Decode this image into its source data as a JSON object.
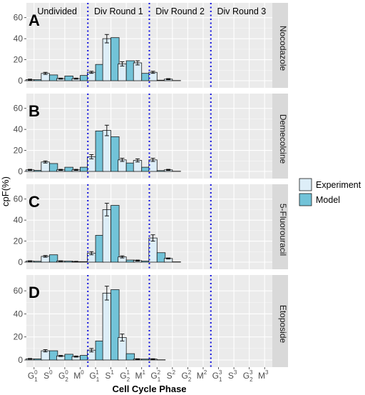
{
  "chart_data": {
    "type": "bar",
    "ylabel": "cpF(%)",
    "xlabel": "Cell Cycle Phase",
    "ylim": [
      0,
      70
    ],
    "yticks": [
      0,
      20,
      40,
      60
    ],
    "grid": true,
    "legend_position": "right",
    "categories": [
      {
        "base": "G",
        "sub": "1",
        "sup": "0"
      },
      {
        "base": "S",
        "sub": "",
        "sup": "0"
      },
      {
        "base": "G",
        "sub": "2",
        "sup": "0"
      },
      {
        "base": "M",
        "sub": "",
        "sup": "0"
      },
      {
        "base": "G",
        "sub": "1",
        "sup": "1"
      },
      {
        "base": "S",
        "sub": "",
        "sup": "1"
      },
      {
        "base": "G",
        "sub": "2",
        "sup": "1"
      },
      {
        "base": "M",
        "sub": "",
        "sup": "1"
      },
      {
        "base": "G",
        "sub": "1",
        "sup": "2"
      },
      {
        "base": "S",
        "sub": "",
        "sup": "2"
      },
      {
        "base": "G",
        "sub": "2",
        "sup": "2"
      },
      {
        "base": "M",
        "sub": "",
        "sup": "2"
      },
      {
        "base": "G",
        "sub": "1",
        "sup": "3"
      },
      {
        "base": "S",
        "sub": "",
        "sup": "3"
      },
      {
        "base": "G",
        "sub": "2",
        "sup": "3"
      },
      {
        "base": "M",
        "sub": "",
        "sup": "3"
      }
    ],
    "round_labels": [
      "Undivided",
      "Div Round 1",
      "Div Round 2",
      "Div Round 3"
    ],
    "legend": [
      {
        "name": "Experiment",
        "color": "#ddeef8"
      },
      {
        "name": "Model",
        "color": "#72c3d8"
      }
    ],
    "panels": [
      {
        "letter": "A",
        "strip": "Nocodazole",
        "series": [
          {
            "name": "Experiment",
            "values": [
              1,
              7,
              2,
              2,
              8,
              40,
              16,
              17,
              8,
              1.5,
              0,
              0,
              0,
              0,
              0,
              0
            ],
            "errors": [
              0.5,
              1,
              0.5,
              0.5,
              1,
              4,
              2,
              2,
              1,
              0.5,
              0,
              0,
              0,
              0,
              0,
              0
            ]
          },
          {
            "name": "Model",
            "values": [
              1,
              5.5,
              4.5,
              5,
              15.5,
              41,
              19,
              7,
              0.5,
              0.2,
              0,
              0,
              0,
              0,
              0,
              0
            ]
          }
        ]
      },
      {
        "letter": "B",
        "strip": "Demecolcine",
        "series": [
          {
            "name": "Experiment",
            "values": [
              1.5,
              9,
              1.5,
              1.5,
              14,
              39,
              11,
              10.5,
              11,
              1.5,
              0,
              0,
              0,
              0,
              0,
              0
            ],
            "errors": [
              0.5,
              1,
              0.5,
              0.5,
              2,
              5,
              1.5,
              1.5,
              1.5,
              0.5,
              0,
              0,
              0,
              0,
              0,
              0
            ]
          },
          {
            "name": "Model",
            "values": [
              1,
              7.5,
              4,
              4,
              38.5,
              33,
              8,
              4,
              0.8,
              0.2,
              0,
              0,
              0,
              0,
              0,
              0
            ]
          }
        ]
      },
      {
        "letter": "C",
        "strip": "5-Fluorouracil",
        "series": [
          {
            "name": "Experiment",
            "values": [
              1,
              5.5,
              1,
              0.5,
              8.5,
              50,
              5,
              1.5,
              23,
              3.5,
              0,
              0,
              0,
              0,
              0,
              0
            ],
            "errors": [
              0.3,
              0.8,
              0.3,
              0.3,
              1.5,
              6,
              1,
              0.5,
              3,
              0.5,
              0,
              0,
              0,
              0,
              0,
              0
            ]
          },
          {
            "name": "Model",
            "values": [
              0.8,
              7,
              1,
              0.5,
              25.5,
              54,
              2,
              1,
              9,
              0.3,
              0,
              0,
              0,
              0,
              0,
              0
            ]
          }
        ]
      },
      {
        "letter": "D",
        "strip": "Etoposide",
        "series": [
          {
            "name": "Experiment",
            "values": [
              1,
              8,
              3.5,
              3,
              8.5,
              58,
              19.5,
              0.8,
              0.8,
              0,
              0,
              0,
              0,
              0,
              0,
              0
            ],
            "errors": [
              0.3,
              1,
              0.5,
              0.5,
              1.5,
              6,
              3,
              0.3,
              0.3,
              0,
              0,
              0,
              0,
              0,
              0,
              0
            ]
          },
          {
            "name": "Model",
            "values": [
              1,
              8,
              5,
              4,
              16.5,
              61,
              5.5,
              0.8,
              0.2,
              0,
              0,
              0,
              0,
              0,
              0,
              0
            ]
          }
        ]
      }
    ]
  }
}
